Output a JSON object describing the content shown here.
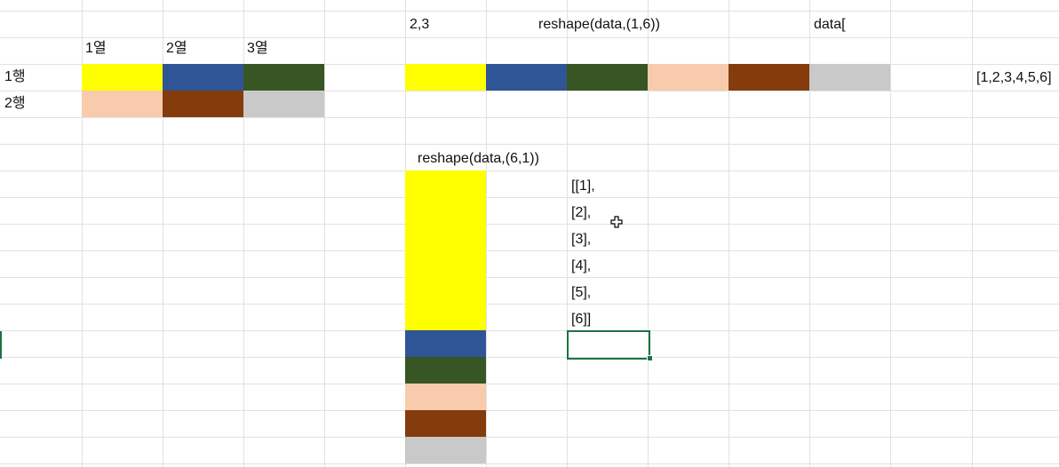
{
  "colors": {
    "yellow": "#ffff00",
    "blue": "#2f5597",
    "dark_green": "#375623",
    "peach": "#f8cbad",
    "brown": "#843c0c",
    "gray": "#c9c9c9",
    "selection": "#1e7145"
  },
  "left_table": {
    "col_headers": [
      "1열",
      "2열",
      "3열"
    ],
    "row_headers": [
      "1행",
      "2행"
    ],
    "cells": [
      [
        "yellow",
        "blue",
        "dark_green"
      ],
      [
        "peach",
        "brown",
        "gray"
      ]
    ]
  },
  "top_area": {
    "shape_label": "2,3",
    "reshape_label": "reshape(data,(1,6))",
    "data_label": "data[",
    "row_cells": [
      "yellow",
      "blue",
      "dark_green",
      "peach",
      "brown",
      "gray"
    ],
    "flat_list": "[1,2,3,4,5,6]"
  },
  "column_area": {
    "reshape_label": "reshape(data,(6,1))",
    "column_cells": [
      "yellow",
      "blue",
      "dark_green",
      "peach",
      "brown",
      "gray"
    ],
    "nested_lines": [
      "[[1],",
      "[2],",
      "[3],",
      "[4],",
      "[5],",
      "[6]]"
    ]
  },
  "cursor_icon": "move-crosshair-icon"
}
